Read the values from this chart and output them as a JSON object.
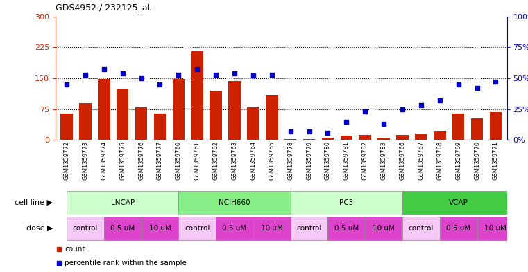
{
  "title": "GDS4952 / 232125_at",
  "samples": [
    "GSM1359772",
    "GSM1359773",
    "GSM1359774",
    "GSM1359775",
    "GSM1359776",
    "GSM1359777",
    "GSM1359760",
    "GSM1359761",
    "GSM1359762",
    "GSM1359763",
    "GSM1359764",
    "GSM1359765",
    "GSM1359778",
    "GSM1359779",
    "GSM1359780",
    "GSM1359781",
    "GSM1359782",
    "GSM1359783",
    "GSM1359766",
    "GSM1359767",
    "GSM1359768",
    "GSM1359769",
    "GSM1359770",
    "GSM1359771"
  ],
  "bar_values": [
    65,
    90,
    148,
    125,
    80,
    65,
    148,
    215,
    120,
    143,
    80,
    110,
    2,
    2,
    5,
    10,
    13,
    5,
    13,
    15,
    22,
    65,
    52,
    68
  ],
  "percentile_values": [
    45,
    53,
    57,
    54,
    50,
    45,
    53,
    57,
    53,
    54,
    52,
    53,
    7,
    7,
    6,
    15,
    23,
    13,
    25,
    28,
    32,
    45,
    42,
    47
  ],
  "bar_color": "#cc2200",
  "point_color": "#0000cc",
  "ylim_left": [
    0,
    300
  ],
  "ylim_right": [
    0,
    100
  ],
  "yticks_left": [
    0,
    75,
    150,
    225,
    300
  ],
  "yticks_right": [
    0,
    25,
    50,
    75,
    100
  ],
  "ytick_labels_right": [
    "0%",
    "25%",
    "50%",
    "75%",
    "100%"
  ],
  "hlines": [
    75,
    150,
    225
  ],
  "cell_lines": [
    {
      "label": "LNCAP",
      "start": 0,
      "end": 6,
      "color": "#ccffcc"
    },
    {
      "label": "NCIH660",
      "start": 6,
      "end": 12,
      "color": "#88ee88"
    },
    {
      "label": "PC3",
      "start": 12,
      "end": 18,
      "color": "#ccffcc"
    },
    {
      "label": "VCAP",
      "start": 18,
      "end": 24,
      "color": "#44cc44"
    }
  ],
  "dose_groups": [
    {
      "label": "control",
      "start": 0,
      "end": 2,
      "color": "#f5c8f5"
    },
    {
      "label": "0.5 uM",
      "start": 2,
      "end": 4,
      "color": "#dd44cc"
    },
    {
      "label": "10 uM",
      "start": 4,
      "end": 6,
      "color": "#dd44cc"
    },
    {
      "label": "control",
      "start": 6,
      "end": 8,
      "color": "#f5c8f5"
    },
    {
      "label": "0.5 uM",
      "start": 8,
      "end": 10,
      "color": "#dd44cc"
    },
    {
      "label": "10 uM",
      "start": 10,
      "end": 12,
      "color": "#dd44cc"
    },
    {
      "label": "control",
      "start": 12,
      "end": 14,
      "color": "#f5c8f5"
    },
    {
      "label": "0.5 uM",
      "start": 14,
      "end": 16,
      "color": "#dd44cc"
    },
    {
      "label": "10 uM",
      "start": 16,
      "end": 18,
      "color": "#dd44cc"
    },
    {
      "label": "control",
      "start": 18,
      "end": 20,
      "color": "#f5c8f5"
    },
    {
      "label": "0.5 uM",
      "start": 20,
      "end": 22,
      "color": "#dd44cc"
    },
    {
      "label": "10 uM",
      "start": 22,
      "end": 24,
      "color": "#dd44cc"
    }
  ],
  "legend_items": [
    {
      "label": "count",
      "color": "#cc2200"
    },
    {
      "label": "percentile rank within the sample",
      "color": "#0000cc"
    }
  ],
  "bg_color": "#ffffff",
  "plot_bg_color": "#ffffff",
  "axis_label_color_left": "#cc2200",
  "axis_label_color_right": "#0000cc",
  "cell_line_label": "cell line",
  "dose_label": "dose",
  "xtick_bg": "#dddddd"
}
